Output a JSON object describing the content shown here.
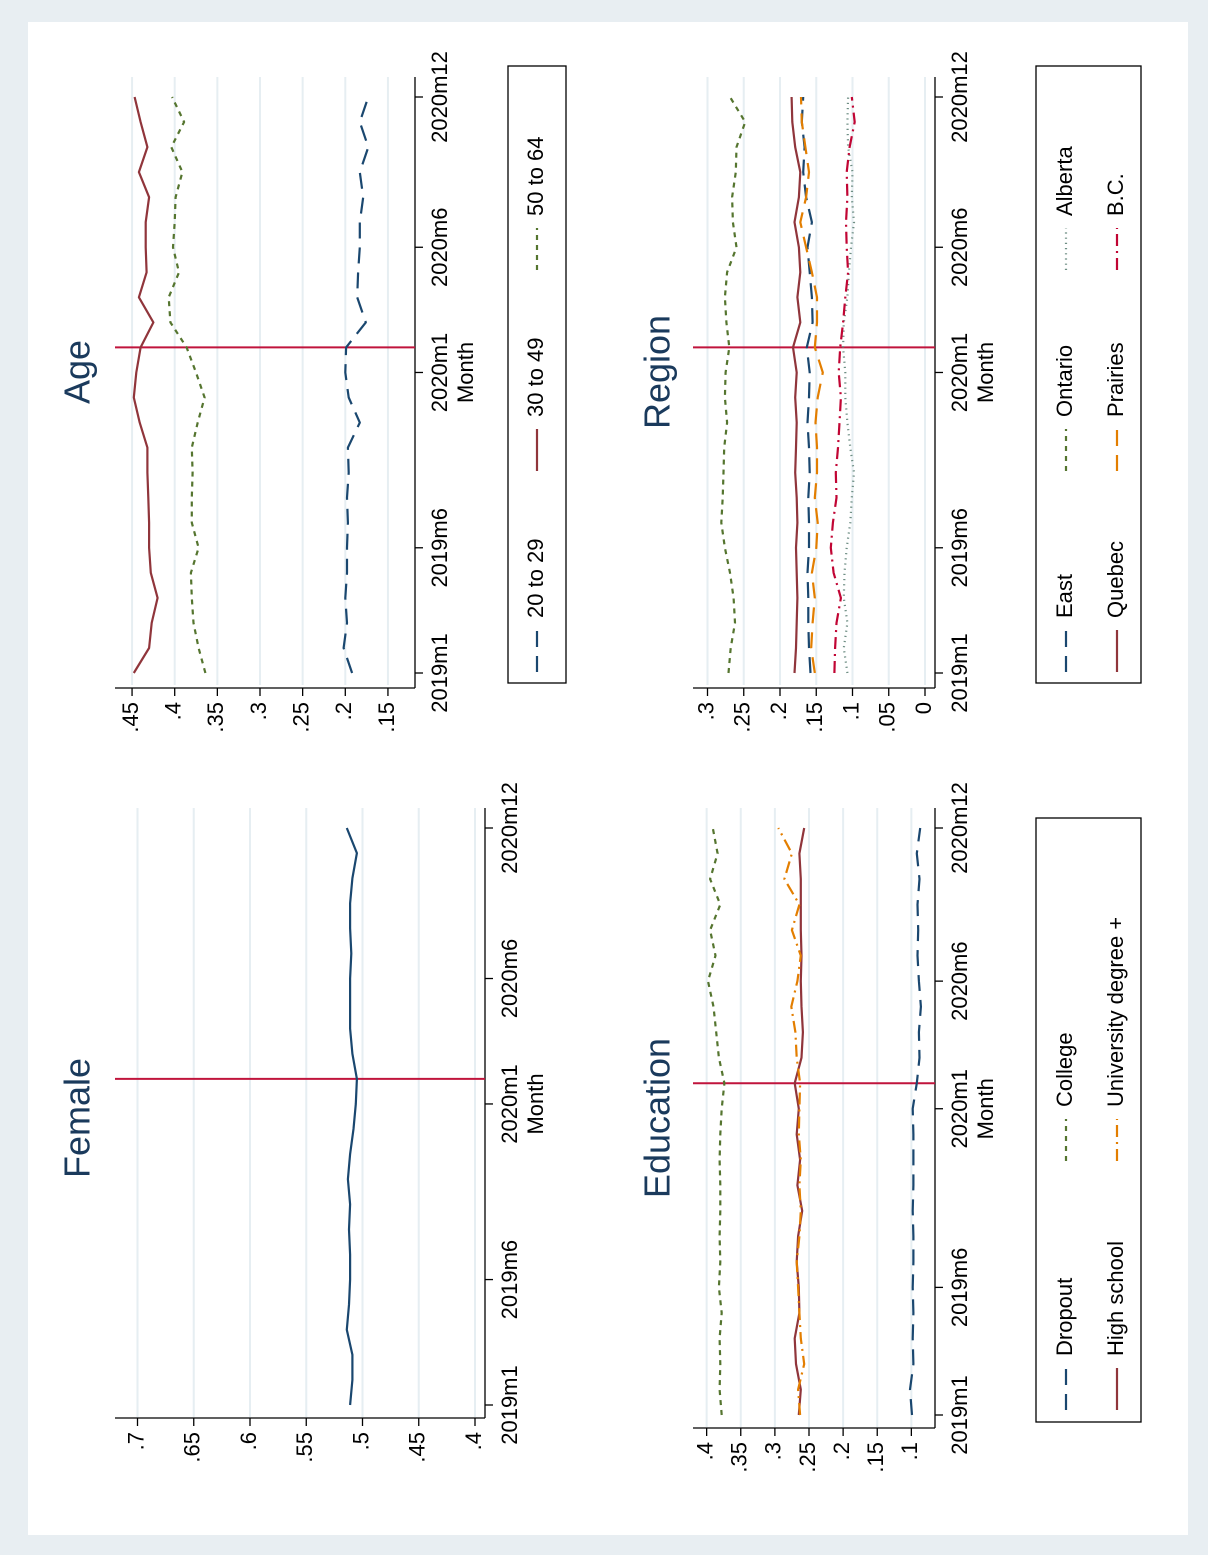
{
  "colors": {
    "page_bg": "#e8eef2",
    "panel_bg": "#ffffff",
    "grid": "#e6eef2",
    "ref_line": "#c0143c",
    "title": "#1a3a5c",
    "navy": "#1a476f",
    "maroon": "#90353b",
    "olive": "#55752f",
    "orange": "#e37e00",
    "teal": "#6e8e84",
    "crimson": "#c10534"
  },
  "x_axis": {
    "label": "Month",
    "tick_labels": [
      "2019m1",
      "2019m6",
      "2020m1",
      "2020m6",
      "2020m12"
    ],
    "tick_months": [
      0,
      5,
      12,
      17,
      23
    ],
    "range": [
      "2019m1",
      "2020m12"
    ]
  },
  "chart_data": [
    {
      "type": "line",
      "title": "Female",
      "ylim": [
        0.4,
        0.72
      ],
      "y_ticks": [
        0.7,
        0.65,
        0.6,
        0.55,
        0.5,
        0.45,
        0.4
      ],
      "y_tick_labels": [
        ".7",
        ".65",
        ".6",
        ".55",
        ".5",
        ".45",
        ".4"
      ],
      "reference_line": "2020m2",
      "categories": [
        "2019m1",
        "2019m2",
        "2019m3",
        "2019m4",
        "2019m5",
        "2019m6",
        "2019m7",
        "2019m8",
        "2019m9",
        "2019m10",
        "2019m11",
        "2019m12",
        "2020m1",
        "2020m2",
        "2020m3",
        "2020m4",
        "2020m5",
        "2020m6",
        "2020m7",
        "2020m8",
        "2020m9",
        "2020m10",
        "2020m11",
        "2020m12"
      ],
      "series": [
        {
          "color": "navy",
          "dash": "solid",
          "values": [
            0.511,
            0.509,
            0.509,
            0.514,
            0.512,
            0.511,
            0.511,
            0.512,
            0.511,
            0.513,
            0.511,
            0.508,
            0.506,
            0.505,
            0.509,
            0.511,
            0.511,
            0.511,
            0.51,
            0.511,
            0.511,
            0.509,
            0.505,
            0.514
          ]
        }
      ]
    },
    {
      "type": "line",
      "title": "Age",
      "ylim": [
        0.13,
        0.47
      ],
      "y_ticks": [
        0.45,
        0.4,
        0.35,
        0.3,
        0.25,
        0.2,
        0.15
      ],
      "y_tick_labels": [
        ".45",
        ".4",
        ".35",
        ".3",
        ".25",
        ".2",
        ".15"
      ],
      "reference_line": "2020m2",
      "categories": [
        "2019m1",
        "2019m2",
        "2019m3",
        "2019m4",
        "2019m5",
        "2019m6",
        "2019m7",
        "2019m8",
        "2019m9",
        "2019m10",
        "2019m11",
        "2019m12",
        "2020m1",
        "2020m2",
        "2020m3",
        "2020m4",
        "2020m5",
        "2020m6",
        "2020m7",
        "2020m8",
        "2020m9",
        "2020m10",
        "2020m11",
        "2020m12"
      ],
      "legend": [
        "20 to 29",
        "30 to 49",
        "50 to 64"
      ],
      "series": [
        {
          "name": "20 to 29",
          "color": "navy",
          "dash": "longdash",
          "values": [
            0.192,
            0.202,
            0.198,
            0.2,
            0.198,
            0.198,
            0.197,
            0.198,
            0.196,
            0.197,
            0.183,
            0.196,
            0.2,
            0.199,
            0.176,
            0.186,
            0.185,
            0.183,
            0.183,
            0.179,
            0.183,
            0.173,
            0.183,
            0.173
          ]
        },
        {
          "name": "30 to 49",
          "color": "maroon",
          "dash": "solid",
          "values": [
            0.448,
            0.43,
            0.427,
            0.42,
            0.428,
            0.43,
            0.43,
            0.431,
            0.432,
            0.432,
            0.441,
            0.448,
            0.445,
            0.44,
            0.425,
            0.442,
            0.433,
            0.434,
            0.434,
            0.43,
            0.442,
            0.432,
            0.44,
            0.447
          ]
        },
        {
          "name": "50 to 64",
          "color": "olive",
          "dash": "dash",
          "values": [
            0.364,
            0.372,
            0.378,
            0.38,
            0.381,
            0.372,
            0.38,
            0.38,
            0.379,
            0.38,
            0.373,
            0.365,
            0.375,
            0.386,
            0.405,
            0.407,
            0.395,
            0.402,
            0.4,
            0.399,
            0.391,
            0.404,
            0.389,
            0.403
          ]
        }
      ]
    },
    {
      "type": "line",
      "title": "Education",
      "ylim": [
        0.08,
        0.42
      ],
      "y_ticks": [
        0.4,
        0.35,
        0.3,
        0.25,
        0.2,
        0.15,
        0.1
      ],
      "y_tick_labels": [
        ".4",
        ".35",
        ".3",
        ".25",
        ".2",
        ".15",
        ".1"
      ],
      "reference_line": "2020m2",
      "categories": [
        "2019m1",
        "2019m2",
        "2019m3",
        "2019m4",
        "2019m5",
        "2019m6",
        "2019m7",
        "2019m8",
        "2019m9",
        "2019m10",
        "2019m11",
        "2019m12",
        "2020m1",
        "2020m2",
        "2020m3",
        "2020m4",
        "2020m5",
        "2020m6",
        "2020m7",
        "2020m8",
        "2020m9",
        "2020m10",
        "2020m11",
        "2020m12"
      ],
      "legend": [
        "Dropout",
        "High school",
        "College",
        "University degree +"
      ],
      "series": [
        {
          "name": "Dropout",
          "color": "navy",
          "dash": "longdash",
          "values": [
            0.099,
            0.102,
            0.097,
            0.098,
            0.097,
            0.098,
            0.097,
            0.097,
            0.098,
            0.097,
            0.097,
            0.097,
            0.098,
            0.092,
            0.088,
            0.089,
            0.086,
            0.089,
            0.091,
            0.09,
            0.091,
            0.088,
            0.092,
            0.087
          ]
        },
        {
          "name": "High school",
          "color": "maroon",
          "dash": "solid",
          "values": [
            0.265,
            0.262,
            0.269,
            0.271,
            0.264,
            0.265,
            0.268,
            0.266,
            0.26,
            0.267,
            0.263,
            0.268,
            0.265,
            0.271,
            0.261,
            0.259,
            0.261,
            0.262,
            0.261,
            0.262,
            0.262,
            0.262,
            0.264,
            0.257
          ]
        },
        {
          "name": "College",
          "color": "olive",
          "dash": "dash",
          "values": [
            0.378,
            0.381,
            0.38,
            0.381,
            0.378,
            0.382,
            0.38,
            0.381,
            0.38,
            0.38,
            0.381,
            0.38,
            0.378,
            0.374,
            0.382,
            0.386,
            0.39,
            0.398,
            0.387,
            0.395,
            0.38,
            0.395,
            0.384,
            0.391
          ]
        },
        {
          "name": "University degree +",
          "color": "orange",
          "dash": "dashdot",
          "values": [
            0.263,
            0.266,
            0.257,
            0.262,
            0.264,
            0.266,
            0.268,
            0.264,
            0.262,
            0.264,
            0.262,
            0.265,
            0.264,
            0.263,
            0.268,
            0.27,
            0.276,
            0.267,
            0.262,
            0.275,
            0.264,
            0.286,
            0.275,
            0.295
          ]
        }
      ]
    },
    {
      "type": "line",
      "title": "Region",
      "ylim": [
        0.0,
        0.32
      ],
      "y_ticks": [
        0.3,
        0.25,
        0.2,
        0.15,
        0.1,
        0.05,
        0
      ],
      "y_tick_labels": [
        ".3",
        ".25",
        ".2",
        ".15",
        ".1",
        ".05",
        "0"
      ],
      "reference_line": "2020m2",
      "categories": [
        "2019m1",
        "2019m2",
        "2019m3",
        "2019m4",
        "2019m5",
        "2019m6",
        "2019m7",
        "2019m8",
        "2019m9",
        "2019m10",
        "2019m11",
        "2019m12",
        "2020m1",
        "2020m2",
        "2020m3",
        "2020m4",
        "2020m5",
        "2020m6",
        "2020m7",
        "2020m8",
        "2020m9",
        "2020m10",
        "2020m11",
        "2020m12"
      ],
      "legend": [
        "East",
        "Quebec",
        "Ontario",
        "Prairies",
        "Alberta",
        "B.C."
      ],
      "series": [
        {
          "name": "East",
          "color": "navy",
          "dash": "longdash",
          "values": [
            0.158,
            0.16,
            0.161,
            0.161,
            0.162,
            0.16,
            0.16,
            0.161,
            0.159,
            0.16,
            0.162,
            0.16,
            0.159,
            0.163,
            0.155,
            0.156,
            0.159,
            0.162,
            0.156,
            0.164,
            0.168,
            0.166,
            0.17,
            0.168
          ]
        },
        {
          "name": "Quebec",
          "color": "maroon",
          "dash": "solid",
          "values": [
            0.18,
            0.178,
            0.177,
            0.176,
            0.177,
            0.178,
            0.176,
            0.177,
            0.179,
            0.178,
            0.177,
            0.179,
            0.177,
            0.182,
            0.172,
            0.176,
            0.172,
            0.174,
            0.18,
            0.174,
            0.172,
            0.179,
            0.183,
            0.184
          ]
        },
        {
          "name": "Ontario",
          "color": "olive",
          "dash": "dash",
          "values": [
            0.271,
            0.268,
            0.262,
            0.264,
            0.269,
            0.276,
            0.281,
            0.279,
            0.278,
            0.277,
            0.273,
            0.276,
            0.275,
            0.27,
            0.274,
            0.276,
            0.273,
            0.26,
            0.265,
            0.266,
            0.261,
            0.26,
            0.248,
            0.269
          ]
        },
        {
          "name": "Prairies",
          "color": "orange",
          "dash": "longdash",
          "values": [
            0.152,
            0.157,
            0.155,
            0.152,
            0.156,
            0.15,
            0.148,
            0.152,
            0.149,
            0.149,
            0.151,
            0.148,
            0.141,
            0.152,
            0.149,
            0.149,
            0.156,
            0.164,
            0.172,
            0.164,
            0.16,
            0.165,
            0.17,
            0.171
          ]
        },
        {
          "name": "Alberta",
          "color": "teal",
          "dash": "dot",
          "values": [
            0.107,
            0.112,
            0.107,
            0.112,
            0.111,
            0.108,
            0.103,
            0.101,
            0.098,
            0.103,
            0.107,
            0.11,
            0.11,
            0.113,
            0.112,
            0.107,
            0.105,
            0.102,
            0.098,
            0.101,
            0.1,
            0.106,
            0.107,
            0.106
          ]
        },
        {
          "name": "B.C.",
          "color": "crimson",
          "dash": "dashdot",
          "values": [
            0.125,
            0.124,
            0.122,
            0.116,
            0.126,
            0.13,
            0.127,
            0.122,
            0.123,
            0.12,
            0.118,
            0.116,
            0.119,
            0.117,
            0.113,
            0.11,
            0.106,
            0.108,
            0.109,
            0.107,
            0.108,
            0.104,
            0.097,
            0.101
          ]
        }
      ]
    }
  ]
}
